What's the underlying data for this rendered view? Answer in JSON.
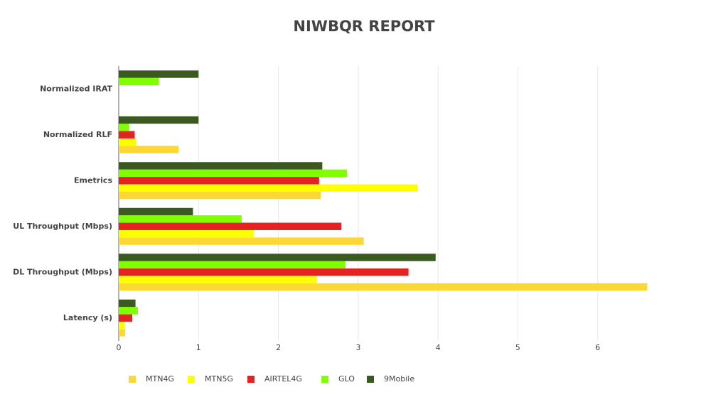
{
  "chart_data": {
    "type": "hbar",
    "title": "NIWBQR REPORT",
    "categories": [
      "Normalized IRAT",
      "Normalized RLF",
      "Emetrics",
      "UL Throughput (Mbps)",
      "DL Throughput (Mbps)",
      "Latency (s)"
    ],
    "series": [
      {
        "name": "MTN4G",
        "color": "#fdd835",
        "values": [
          0,
          0.75,
          2.53,
          3.07,
          6.62,
          0.08
        ]
      },
      {
        "name": "MTN5G",
        "color": "#ffff00",
        "values": [
          0,
          0.22,
          3.74,
          1.69,
          2.48,
          0.07
        ]
      },
      {
        "name": "AIRTEL4G",
        "color": "#e52222",
        "values": [
          0,
          0.2,
          2.51,
          2.79,
          3.63,
          0.17
        ]
      },
      {
        "name": "GLO",
        "color": "#80ff00",
        "values": [
          0.5,
          0.13,
          2.86,
          1.54,
          2.84,
          0.24
        ]
      },
      {
        "name": "9Mobile",
        "color": "#3a5a20",
        "values": [
          1,
          1,
          2.55,
          0.93,
          3.97,
          0.21
        ]
      }
    ],
    "xlim": [
      0,
      7
    ],
    "xticks": [
      0,
      1,
      2,
      3,
      4,
      5,
      6
    ],
    "grid": true,
    "legend": "bottom"
  }
}
